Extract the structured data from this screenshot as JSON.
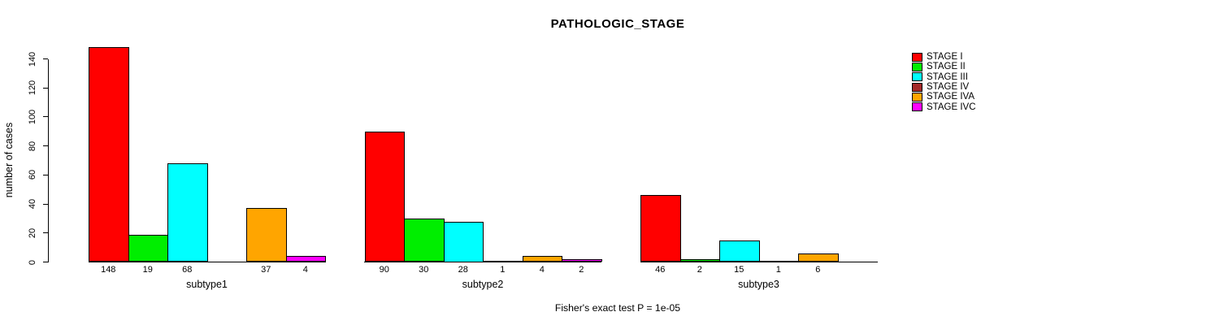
{
  "page": {
    "background": "#FFFFFF"
  },
  "chart_data": {
    "type": "bar",
    "title": "PATHOLOGIC_STAGE",
    "ylabel": "number of cases",
    "xlabel": "",
    "ylim": [
      0,
      140
    ],
    "yticks": [
      0,
      20,
      40,
      60,
      80,
      100,
      120,
      140
    ],
    "categories": [
      "subtype1",
      "subtype2",
      "subtype3"
    ],
    "series": [
      {
        "name": "STAGE I",
        "color": "#FF0000",
        "values": [
          148,
          90,
          46
        ]
      },
      {
        "name": "STAGE II",
        "color": "#00EE00",
        "values": [
          19,
          30,
          2
        ]
      },
      {
        "name": "STAGE III",
        "color": "#00FFFF",
        "values": [
          68,
          28,
          15
        ]
      },
      {
        "name": "STAGE IV",
        "color": "#A52A2A",
        "values": [
          0,
          1,
          1
        ]
      },
      {
        "name": "STAGE IVA",
        "color": "#FFA500",
        "values": [
          37,
          4,
          6
        ]
      },
      {
        "name": "STAGE IVC",
        "color": "#FF00FF",
        "values": [
          4,
          2,
          0
        ]
      }
    ],
    "bar_value_labels": true,
    "zero_value_bars_hidden": true,
    "grid": false,
    "legend_position": "right",
    "annotation": "Fisher's exact test P = 1e-05"
  }
}
